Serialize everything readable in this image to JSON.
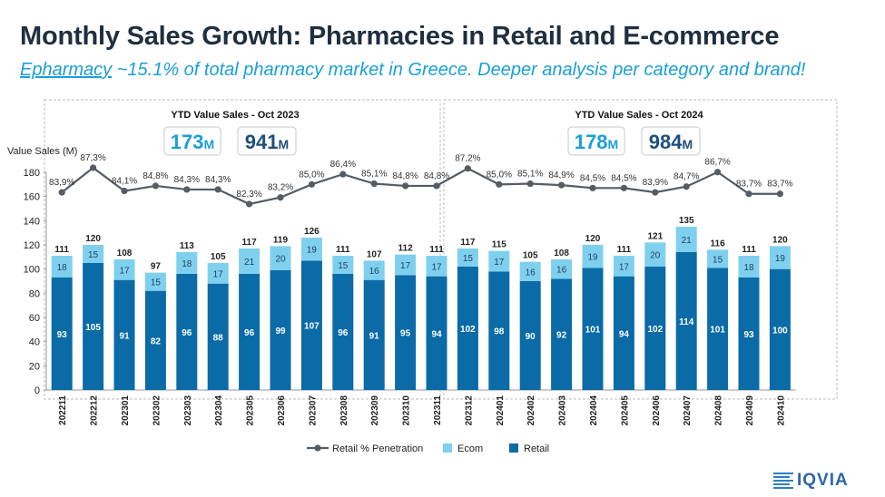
{
  "header": {
    "title": "Monthly Sales Growth: Pharmacies in Retail and E-commerce",
    "subtitle_underlined": "Epharmacy",
    "subtitle_rest": " ~15.1% of total pharmacy market in Greece. Deeper analysis per category and brand!"
  },
  "logo": {
    "text": "IQVIA"
  },
  "colors": {
    "retail": "#0a6ba7",
    "ecom": "#7fd0ef",
    "line": "#555c63",
    "accent": "#1a9fd6",
    "dark": "#1d4f7c"
  },
  "chart_data": {
    "type": "bar",
    "subtype": "stacked bar with line overlay",
    "ylabel": "Value Sales (M)",
    "ylim": [
      0,
      180
    ],
    "yticks": [
      0,
      20,
      40,
      60,
      80,
      100,
      120,
      140,
      160,
      180
    ],
    "categories": [
      "202211",
      "202212",
      "202301",
      "202302",
      "202303",
      "202304",
      "202305",
      "202306",
      "202307",
      "202308",
      "202309",
      "202310",
      "202311",
      "202312",
      "202401",
      "202402",
      "202403",
      "202404",
      "202405",
      "202406",
      "202407",
      "202408",
      "202409",
      "202410"
    ],
    "series": [
      {
        "name": "Retail",
        "kind": "bar",
        "values": [
          93,
          105,
          91,
          82,
          96,
          88,
          96,
          99,
          107,
          96,
          91,
          95,
          94,
          102,
          98,
          90,
          92,
          101,
          94,
          102,
          114,
          101,
          93,
          100
        ]
      },
      {
        "name": "Ecom",
        "kind": "bar",
        "values": [
          18,
          15,
          17,
          15,
          18,
          17,
          21,
          20,
          19,
          15,
          16,
          17,
          17,
          15,
          17,
          16,
          16,
          19,
          17,
          20,
          21,
          15,
          18,
          19
        ]
      }
    ],
    "totals": [
      111,
      120,
      108,
      97,
      113,
      105,
      117,
      119,
      126,
      111,
      107,
      112,
      111,
      117,
      115,
      105,
      108,
      120,
      111,
      121,
      135,
      116,
      111,
      120
    ],
    "line": {
      "name": "Retail % Penetration",
      "values": [
        83.9,
        87.3,
        84.1,
        84.8,
        84.3,
        84.3,
        82.3,
        83.2,
        85.0,
        86.4,
        85.1,
        84.8,
        84.8,
        87.2,
        85.0,
        85.1,
        84.9,
        84.5,
        84.5,
        83.9,
        84.7,
        86.7,
        83.7,
        83.7
      ],
      "labels": [
        "83,9%",
        "87,3%",
        "84,1%",
        "84,8%",
        "84,3%",
        "84,3%",
        "82,3%",
        "83,2%",
        "85,0%",
        "86,4%",
        "85,1%",
        "84,8%",
        "84,8%",
        "87,2%",
        "85,0%",
        "85,1%",
        "84,9%",
        "84,5%",
        "84,5%",
        "83,9%",
        "84,7%",
        "86,7%",
        "83,7%",
        "83,7%"
      ]
    },
    "panels": [
      {
        "title": "YTD Value Sales - Oct 2023",
        "ecom_total": "173",
        "ecom_unit": "M",
        "retail_total": "941",
        "retail_unit": "M"
      },
      {
        "title": "YTD Value Sales - Oct 2024",
        "ecom_total": "178",
        "ecom_unit": "M",
        "retail_total": "984",
        "retail_unit": "M"
      }
    ],
    "legend": [
      "Retail % Penetration",
      "Ecom",
      "Retail"
    ],
    "legend_position": "bottom"
  }
}
